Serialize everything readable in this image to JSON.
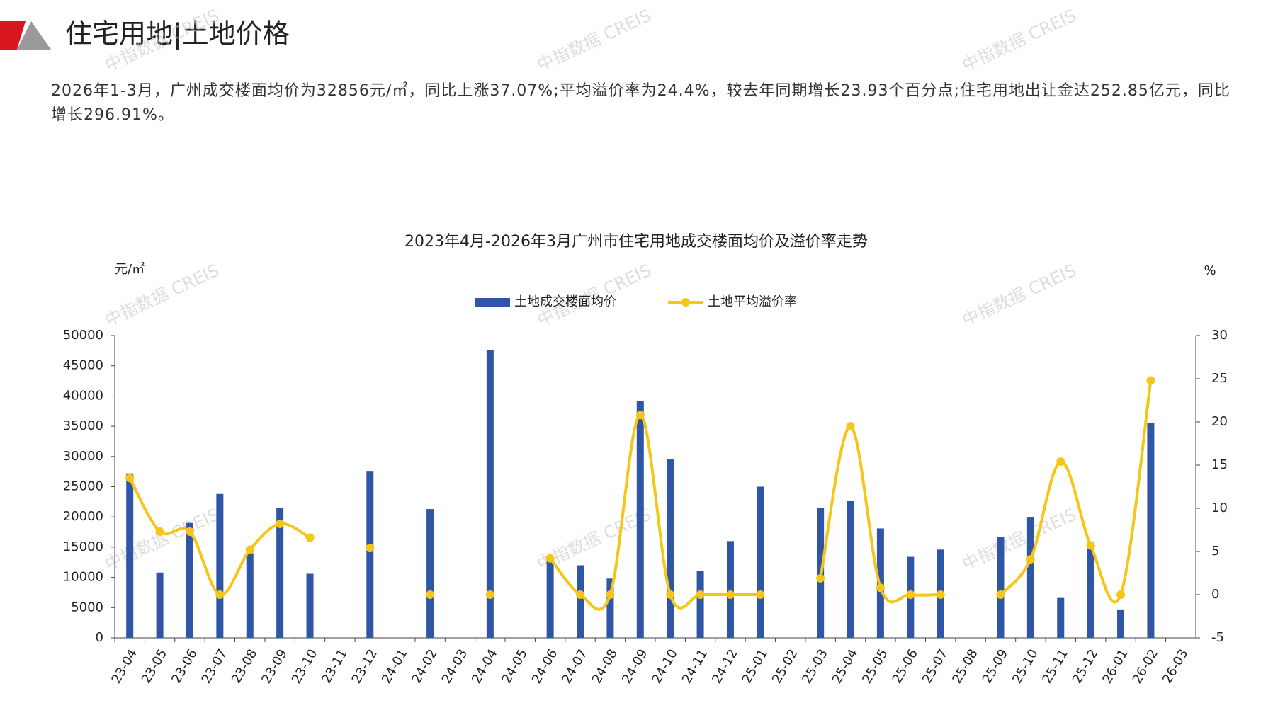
{
  "header": {
    "title": "住宅用地|土地价格",
    "summary": "2026年1-3月，广州成交楼面均价为32856元/㎡，同比上涨37.07%;平均溢价率为24.4%，较去年同期增长23.93个百分点;住宅用地出让金达252.85亿元，同比增长296.91%。"
  },
  "watermark": "中指数据 CREIS",
  "chart_data": {
    "type": "bar-line",
    "title": "2023年4月-2026年3月广州市住宅用地成交楼面均价及溢价率走势",
    "y_label": "元/㎡",
    "y2_label": "%",
    "categories": [
      "23-04",
      "23-05",
      "23-06",
      "23-07",
      "23-08",
      "23-09",
      "23-10",
      "23-11",
      "23-12",
      "24-01",
      "24-02",
      "24-03",
      "24-04",
      "24-05",
      "24-06",
      "24-07",
      "24-08",
      "24-09",
      "24-10",
      "24-11",
      "24-12",
      "25-01",
      "25-02",
      "25-03",
      "25-04",
      "25-05",
      "25-06",
      "25-07",
      "25-08",
      "25-09",
      "25-10",
      "25-11",
      "25-12",
      "26-01",
      "26-02",
      "26-03"
    ],
    "series": [
      {
        "name": "土地成交楼面均价",
        "type": "bar",
        "color": "#2f56a6",
        "values": [
          27200,
          10800,
          19000,
          23800,
          14000,
          21500,
          10600,
          null,
          27500,
          null,
          21300,
          null,
          47600,
          null,
          13000,
          12000,
          9800,
          39200,
          29500,
          11100,
          16000,
          25000,
          null,
          21500,
          22600,
          18100,
          13400,
          14600,
          null,
          16700,
          19900,
          6600,
          15000,
          4700,
          35600,
          null
        ]
      },
      {
        "name": "土地平均溢价率",
        "type": "line",
        "axis": "y2",
        "color": "#f5c518",
        "values": [
          13.5,
          7.3,
          7.3,
          0,
          5.2,
          8.2,
          6.6,
          null,
          5.4,
          null,
          0,
          null,
          0,
          null,
          4.2,
          0,
          0,
          20.8,
          0,
          0,
          0,
          0,
          null,
          1.9,
          19.5,
          0.8,
          0,
          0,
          null,
          0,
          4.1,
          15.4,
          5.7,
          0,
          24.8,
          null
        ]
      }
    ],
    "ylim": [
      0,
      50000
    ],
    "yticks": [
      0,
      5000,
      10000,
      15000,
      20000,
      25000,
      30000,
      35000,
      40000,
      45000,
      50000
    ],
    "y2lim": [
      -5,
      30
    ],
    "y2ticks": [
      -5,
      0,
      5,
      10,
      15,
      20,
      25,
      30
    ],
    "legend": "top"
  }
}
